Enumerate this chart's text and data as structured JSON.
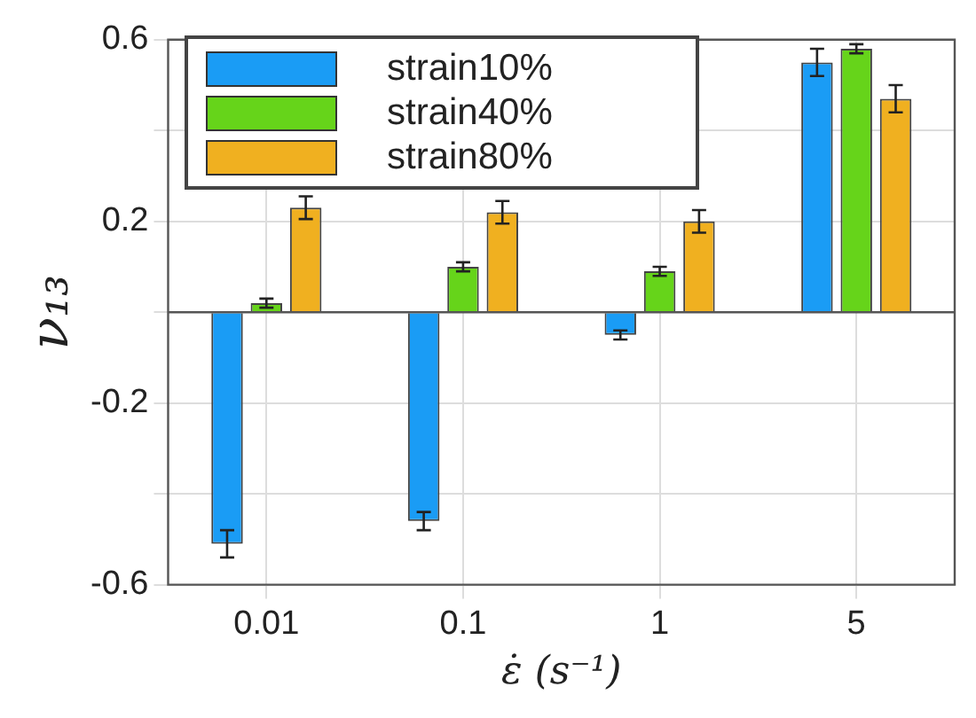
{
  "chart_data": {
    "type": "bar",
    "xlabel": "ε̇ (s⁻¹)",
    "ylabel": "ν₁₃",
    "categories": [
      "0.01",
      "0.1",
      "1",
      "5"
    ],
    "series": [
      {
        "name": "strain10%",
        "color": "#1a9cf5",
        "values": [
          -0.51,
          -0.46,
          -0.05,
          0.55
        ],
        "errors": [
          0.03,
          0.02,
          0.01,
          0.03
        ]
      },
      {
        "name": "strain40%",
        "color": "#66d41a",
        "values": [
          0.02,
          0.1,
          0.09,
          0.58
        ],
        "errors": [
          0.01,
          0.01,
          0.01,
          0.01
        ]
      },
      {
        "name": "strain80%",
        "color": "#f0b020",
        "values": [
          0.23,
          0.22,
          0.2,
          0.47
        ],
        "errors": [
          0.025,
          0.025,
          0.025,
          0.03
        ]
      }
    ],
    "ylim": [
      -0.6,
      0.6
    ],
    "yticks": [
      -0.6,
      {
        "value": -0.4,
        "label": null
      },
      -0.2,
      {
        "value": 0,
        "label": null
      },
      0.2,
      {
        "value": 0.4,
        "label": null
      },
      0.6
    ],
    "grid": true,
    "legend": "top left"
  }
}
